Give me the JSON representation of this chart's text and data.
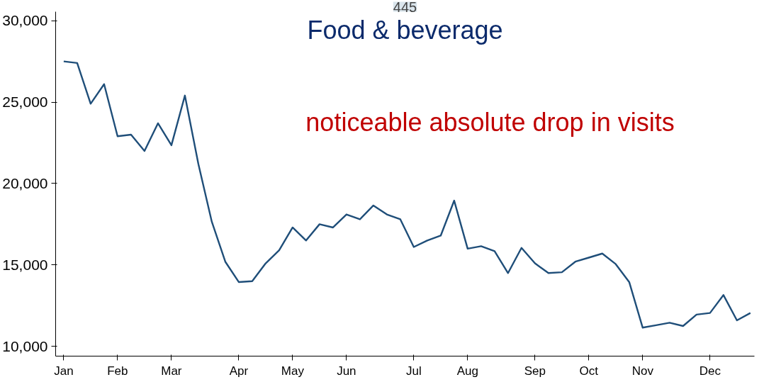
{
  "chart_data": {
    "type": "line",
    "title": "445",
    "annotations": [
      "Food & beverage",
      "noticeable absolute drop in visits"
    ],
    "categories": [
      "Jan",
      null,
      null,
      null,
      "Feb",
      null,
      null,
      null,
      "Mar",
      null,
      null,
      null,
      null,
      "Apr",
      null,
      null,
      null,
      "May",
      null,
      null,
      null,
      "Jun",
      null,
      null,
      null,
      null,
      "Jul",
      null,
      null,
      null,
      "Aug",
      null,
      null,
      null,
      null,
      "Sep",
      null,
      null,
      null,
      "Oct",
      null,
      null,
      null,
      "Nov",
      null,
      null,
      null,
      null,
      "Dec",
      null,
      null,
      null
    ],
    "series": [
      {
        "color": "#1f4e79",
        "values": [
          27500,
          27400,
          24900,
          26100,
          22900,
          23000,
          22000,
          23700,
          22350,
          25400,
          21200,
          17650,
          15200,
          13950,
          14000,
          15100,
          15900,
          17300,
          16500,
          17500,
          17300,
          18100,
          17800,
          18650,
          18100,
          17800,
          16100,
          16500,
          16800,
          18950,
          16000,
          16150,
          15850,
          14500,
          16050,
          15100,
          14500,
          14550,
          15200,
          15450,
          15700,
          15050,
          13950,
          11150,
          11300,
          11450,
          11250,
          11950,
          12050,
          13150,
          11600,
          12050
        ]
      }
    ],
    "ylim": [
      9400,
      30550
    ],
    "yticks": [
      {
        "value": 10000,
        "label": "10,000"
      },
      {
        "value": 15000,
        "label": "15,000"
      },
      {
        "value": 20000,
        "label": "20,000"
      },
      {
        "value": 25000,
        "label": "25,000"
      },
      {
        "value": 30000,
        "label": "30,000"
      }
    ],
    "grid": false,
    "marker": "none",
    "line_style": "solid"
  }
}
